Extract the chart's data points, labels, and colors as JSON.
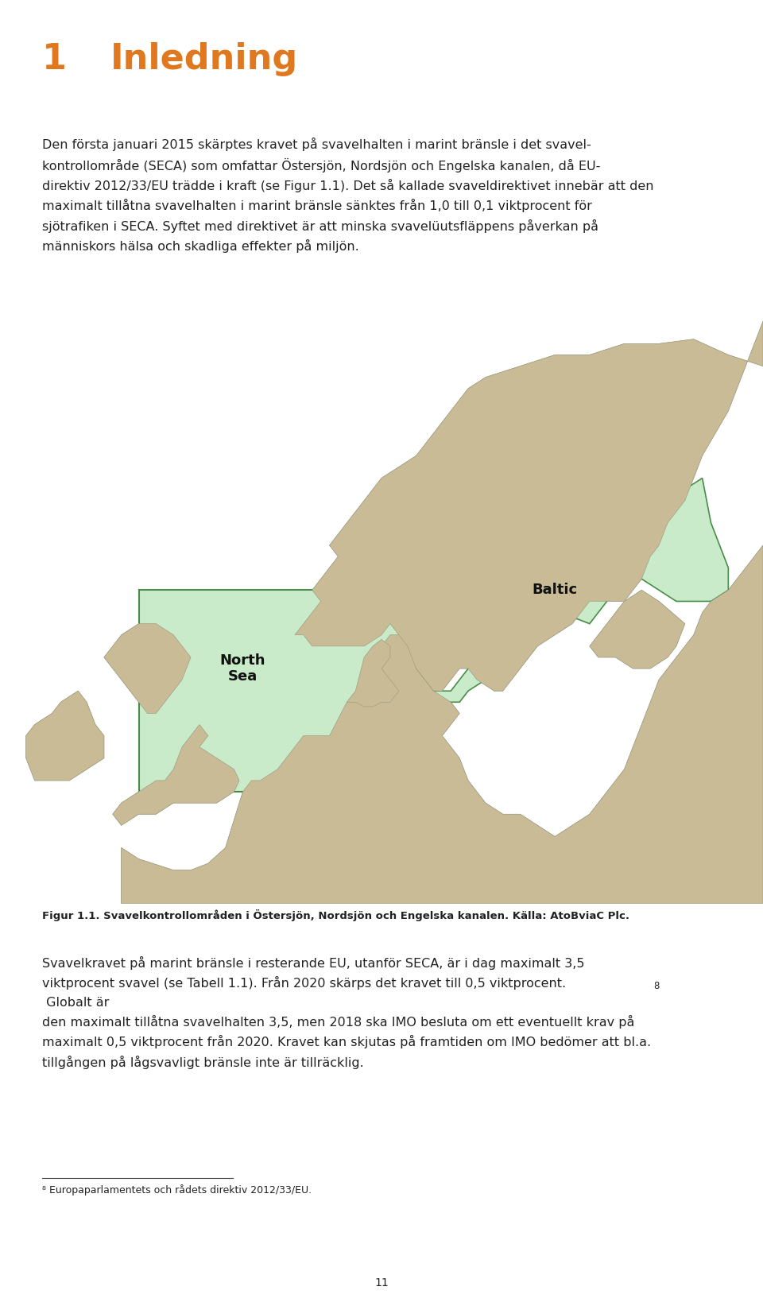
{
  "page_width": 9.6,
  "page_height": 16.43,
  "bg_color": "#ffffff",
  "heading_number": "1",
  "heading_text": "Inledning",
  "heading_color": "#e07820",
  "heading_fontsize": 32,
  "body_fontsize": 11.5,
  "body_color": "#222222",
  "body_text_1_line1": "Den första januari 2015 skärptes kravet på svavelhalten i marint bränsle i det svavel-",
  "body_text_1_line2": "kontrollområde (SECA) som omfattar Östersjön, Nordsjön och Engelska kanalen, då EU-",
  "body_text_1_line3": "direktiv 2012/33/EU trädde i kraft (se Figur 1.1). Det så kallade svaveldirektivet innebär att den",
  "body_text_1_line4": "maximalt tillåtna svavelhalten i marint bränsle sänktes från 1,0 till 0,1 viktprocent för",
  "body_text_1_line5": "sjötrafiken i SECA. Syftet med direktivet är att minska svavelüutsfläppens påverkan på",
  "body_text_1_line6": "människors hälsa och skadliga effekter på miljön.",
  "body_text_1": "Den första januari 2015 skärptes kravet på svavelhalten i marint bränsle i det svavel-\nkontrollområde (SECA) som omfattar Östersjön, Nordsjön och Engelska kanalen, då EU-\ndirektiv 2012/33/EU trädde i kraft (se Figur 1.1). Det så kallade svaveldirektivet innebär att den\nmaximalt tillåtna svavelhalten i marint bränsle sänktes från 1,0 till 0,1 viktprocent för\nsjötrafiken i SECA. Syftet med direktivet är att minska svavelüutsfläppens påverkan på\nmänniskors hälsa och skadliga effekter på miljön.",
  "figure_caption": "Figur 1.1. Svavelkontrollområden i Östersjön, Nordsjön och Engelska kanalen. Källa: AtoBviaC Plc.",
  "caption_fontsize": 9.5,
  "body_text_2": "Svavelkravet på marint bränsle i resterande EU, utanför SECA, är i dag maximalt 3,5\nviktprocent svavel (se Tabell 1.1). Från 2020 skärps det kravet till 0,5 viktprocent.",
  "body_text_2b": "Globalt är\nden maximalt tillåtna svavelhalten 3,5, men 2018 ska IMO besluta om ett eventuellt krav på\nmaximalt 0,5 viktprocent från 2020. Kravet kan skjutas på framtiden om IMO bedömer att bl.a.\ntillgången på lågsvavligt bränsle inte är tillräcklig.",
  "footnote_text": "⁸ Europaparlamentets och rådets direktiv 2012/33/EU.",
  "footnote_fontsize": 9.0,
  "page_number": "11",
  "ocean_color": "#b8d4e0",
  "land_color": "#c8bb96",
  "seca_color": "#c0e8c0",
  "seca_edge_color": "#2d7a2d",
  "north_sea_label": "North\nSea",
  "baltic_label": "Baltic",
  "map_label_fontsize": 13
}
